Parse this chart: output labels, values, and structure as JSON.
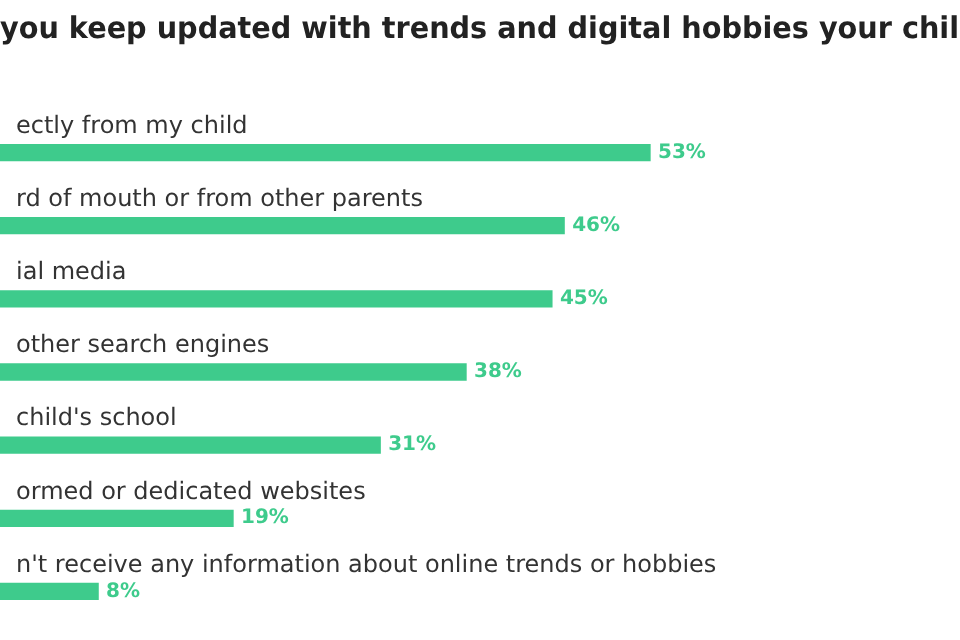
{
  "chart_data": {
    "type": "bar",
    "orientation": "horizontal",
    "title": "you keep updated with trends and digital hobbies your chil",
    "categories": [
      "ectly from my child",
      "rd of mouth or from other parents",
      "ial media",
      "other search engines",
      "child's school",
      "ormed or dedicated websites",
      "n't receive any information about online trends or hobbies"
    ],
    "values": [
      53,
      46,
      45,
      38,
      31,
      19,
      8
    ],
    "value_labels": [
      "53%",
      "46%",
      "45%",
      "38%",
      "31%",
      "19%",
      "8%"
    ],
    "color": "#3ecb8c",
    "legend": false
  }
}
